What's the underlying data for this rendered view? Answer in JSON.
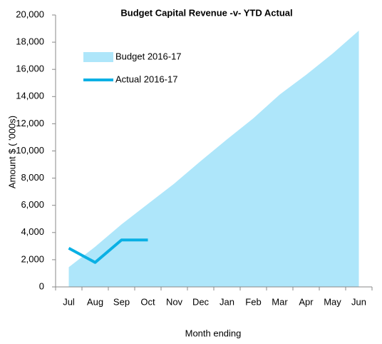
{
  "chart_data": {
    "type": "line",
    "title": "Budget Capital Revenue -v- YTD Actual",
    "x_label": "Month ending",
    "y_label": "Amount $ ( '000s)",
    "categories": [
      "Jul",
      "Aug",
      "Sep",
      "Oct",
      "Nov",
      "Dec",
      "Jan",
      "Feb",
      "Mar",
      "Apr",
      "May",
      "Jun"
    ],
    "series": [
      {
        "name": "Budget 2016-17",
        "color": "#aee6fa",
        "kind": "area",
        "values": [
          1450,
          2950,
          4600,
          6100,
          7600,
          9250,
          10850,
          12400,
          14150,
          15600,
          17150,
          18850
        ]
      },
      {
        "name": "Actual 2016-17",
        "color": "#0ab0e4",
        "kind": "line",
        "values": [
          2850,
          1800,
          3450,
          3450,
          null,
          null,
          null,
          null,
          null,
          null,
          null,
          null
        ]
      }
    ],
    "ylim": [
      0,
      20000
    ],
    "yticks": [
      0,
      {
        "value": 2000,
        "label": "2,000"
      },
      {
        "value": 4000,
        "label": "4,000"
      },
      {
        "value": 6000,
        "label": "6,000"
      },
      {
        "value": 8000,
        "label": "8,000"
      },
      {
        "value": 10000,
        "label": "10,000"
      },
      {
        "value": 12000,
        "label": "12,000"
      },
      {
        "value": 14000,
        "label": "14,000"
      },
      {
        "value": 16000,
        "label": "16,000"
      },
      {
        "value": 18000,
        "label": "18,000"
      },
      {
        "value": 20000,
        "label": "20,000"
      }
    ],
    "grid": false,
    "legend": "top-left"
  }
}
